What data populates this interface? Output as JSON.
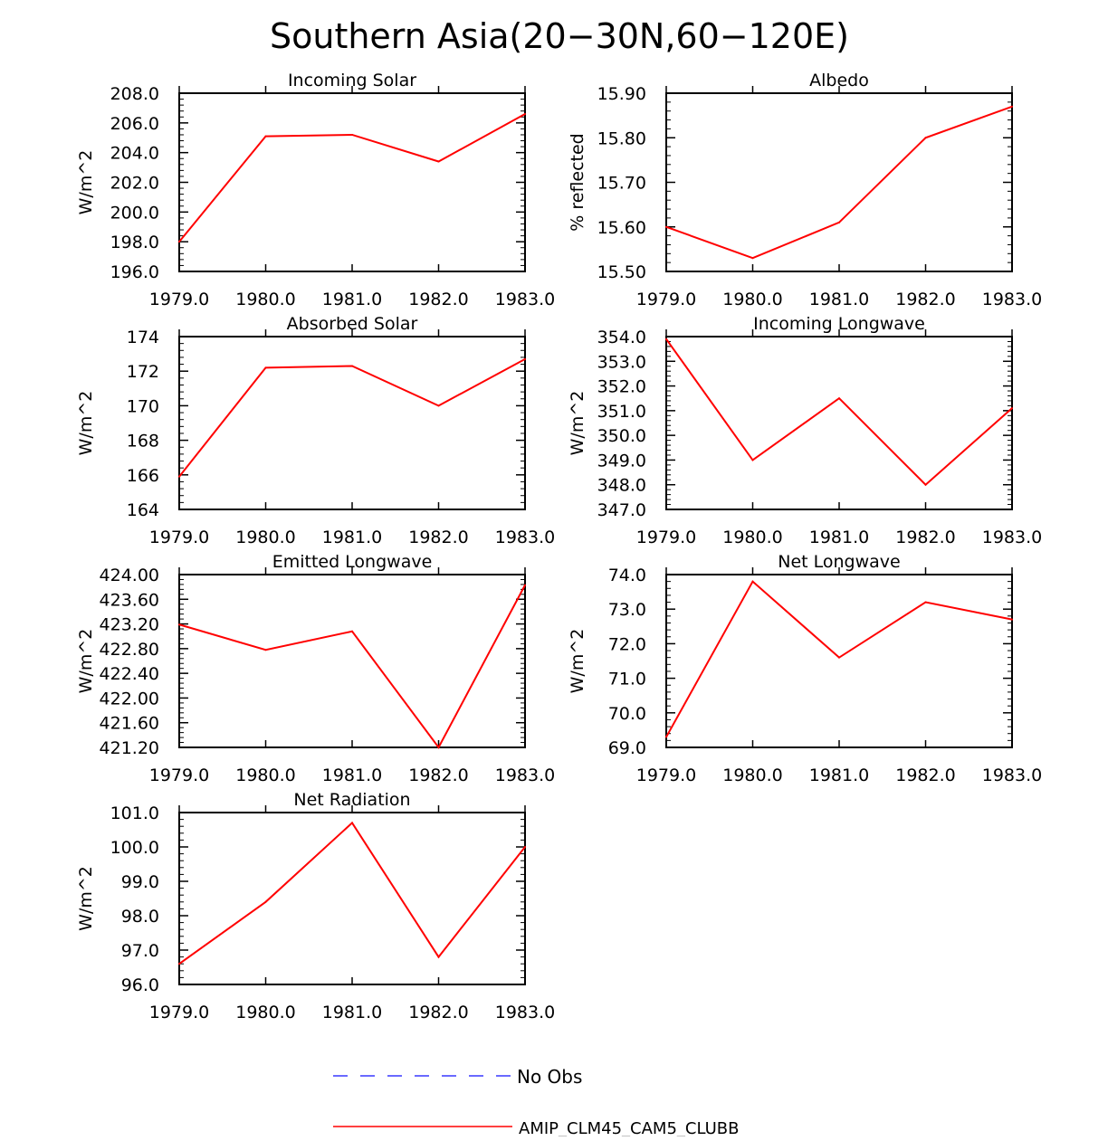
{
  "main_title": "Southern Asia(20−30N,60−120E)",
  "colors": {
    "model": "#ff0000",
    "obs": "#6a6aff",
    "axis": "#000000"
  },
  "legend": {
    "obs_label": "No Obs",
    "model_label": "AMIP_CLM45_CAM5_CLUBB"
  },
  "chart_data": [
    {
      "type": "line",
      "title": "Incoming Solar",
      "ylabel": "W/m^2",
      "xlabel": "",
      "x": [
        1979,
        1980,
        1981,
        1982,
        1983
      ],
      "xlim": [
        1979,
        1983
      ],
      "xtick_labels": [
        "1979.0",
        "1980.0",
        "1981.0",
        "1982.0",
        "1983.0"
      ],
      "ylim": [
        196,
        208
      ],
      "yticks": [
        196,
        198,
        200,
        202,
        204,
        206,
        208
      ],
      "ytick_labels": [
        "196.0",
        "198.0",
        "200.0",
        "202.0",
        "204.0",
        "206.0",
        "208.0"
      ],
      "series": [
        {
          "name": "AMIP_CLM45_CAM5_CLUBB",
          "values": [
            198.0,
            205.1,
            205.2,
            203.4,
            206.6
          ]
        }
      ]
    },
    {
      "type": "line",
      "title": "Albedo",
      "ylabel": "% reflected",
      "xlabel": "",
      "x": [
        1979,
        1980,
        1981,
        1982,
        1983
      ],
      "xlim": [
        1979,
        1983
      ],
      "xtick_labels": [
        "1979.0",
        "1980.0",
        "1981.0",
        "1982.0",
        "1983.0"
      ],
      "ylim": [
        15.5,
        15.9
      ],
      "yticks": [
        15.5,
        15.6,
        15.7,
        15.8,
        15.9
      ],
      "ytick_labels": [
        "15.50",
        "15.60",
        "15.70",
        "15.80",
        "15.90"
      ],
      "series": [
        {
          "name": "AMIP_CLM45_CAM5_CLUBB",
          "values": [
            15.6,
            15.53,
            15.61,
            15.8,
            15.87
          ]
        }
      ]
    },
    {
      "type": "line",
      "title": "Absorbed Solar",
      "ylabel": "W/m^2",
      "xlabel": "",
      "x": [
        1979,
        1980,
        1981,
        1982,
        1983
      ],
      "xlim": [
        1979,
        1983
      ],
      "xtick_labels": [
        "1979.0",
        "1980.0",
        "1981.0",
        "1982.0",
        "1983.0"
      ],
      "ylim": [
        164,
        174
      ],
      "yticks": [
        164,
        166,
        168,
        170,
        172,
        174
      ],
      "ytick_labels": [
        "164",
        "166",
        "168",
        "170",
        "172",
        "174"
      ],
      "series": [
        {
          "name": "AMIP_CLM45_CAM5_CLUBB",
          "values": [
            165.9,
            172.2,
            172.3,
            170.0,
            172.7
          ]
        }
      ]
    },
    {
      "type": "line",
      "title": "Incoming Longwave",
      "ylabel": "W/m^2",
      "xlabel": "",
      "x": [
        1979,
        1980,
        1981,
        1982,
        1983
      ],
      "xlim": [
        1979,
        1983
      ],
      "xtick_labels": [
        "1979.0",
        "1980.0",
        "1981.0",
        "1982.0",
        "1983.0"
      ],
      "ylim": [
        347,
        354
      ],
      "yticks": [
        347,
        348,
        349,
        350,
        351,
        352,
        353,
        354
      ],
      "ytick_labels": [
        "347.0",
        "348.0",
        "349.0",
        "350.0",
        "351.0",
        "352.0",
        "353.0",
        "354.0"
      ],
      "series": [
        {
          "name": "AMIP_CLM45_CAM5_CLUBB",
          "values": [
            353.9,
            349.0,
            351.5,
            348.0,
            351.1
          ]
        }
      ]
    },
    {
      "type": "line",
      "title": "Emitted Longwave",
      "ylabel": "W/m^2",
      "xlabel": "",
      "x": [
        1979,
        1980,
        1981,
        1982,
        1983
      ],
      "xlim": [
        1979,
        1983
      ],
      "xtick_labels": [
        "1979.0",
        "1980.0",
        "1981.0",
        "1982.0",
        "1983.0"
      ],
      "ylim": [
        421.2,
        424.0
      ],
      "yticks": [
        421.2,
        421.6,
        422.0,
        422.4,
        422.8,
        423.2,
        423.6,
        424.0
      ],
      "ytick_labels": [
        "421.20",
        "421.60",
        "422.00",
        "422.40",
        "422.80",
        "423.20",
        "423.60",
        "424.00"
      ],
      "series": [
        {
          "name": "AMIP_CLM45_CAM5_CLUBB",
          "values": [
            423.19,
            422.78,
            423.08,
            421.2,
            423.83
          ]
        }
      ]
    },
    {
      "type": "line",
      "title": "Net Longwave",
      "ylabel": "W/m^2",
      "xlabel": "",
      "x": [
        1979,
        1980,
        1981,
        1982,
        1983
      ],
      "xlim": [
        1979,
        1983
      ],
      "xtick_labels": [
        "1979.0",
        "1980.0",
        "1981.0",
        "1982.0",
        "1983.0"
      ],
      "ylim": [
        69,
        74
      ],
      "yticks": [
        69,
        70,
        71,
        72,
        73,
        74
      ],
      "ytick_labels": [
        "69.0",
        "70.0",
        "71.0",
        "72.0",
        "73.0",
        "74.0"
      ],
      "series": [
        {
          "name": "AMIP_CLM45_CAM5_CLUBB",
          "values": [
            69.3,
            73.8,
            71.6,
            73.2,
            72.7
          ]
        }
      ]
    },
    {
      "type": "line",
      "title": "Net Radiation",
      "ylabel": "W/m^2",
      "xlabel": "",
      "x": [
        1979,
        1980,
        1981,
        1982,
        1983
      ],
      "xlim": [
        1979,
        1983
      ],
      "xtick_labels": [
        "1979.0",
        "1980.0",
        "1981.0",
        "1982.0",
        "1983.0"
      ],
      "ylim": [
        96,
        101
      ],
      "yticks": [
        96,
        97,
        98,
        99,
        100,
        101
      ],
      "ytick_labels": [
        "96.0",
        "97.0",
        "98.0",
        "99.0",
        "100.0",
        "101.0"
      ],
      "series": [
        {
          "name": "AMIP_CLM45_CAM5_CLUBB",
          "values": [
            96.6,
            98.4,
            100.7,
            96.8,
            100.0
          ]
        }
      ]
    }
  ]
}
